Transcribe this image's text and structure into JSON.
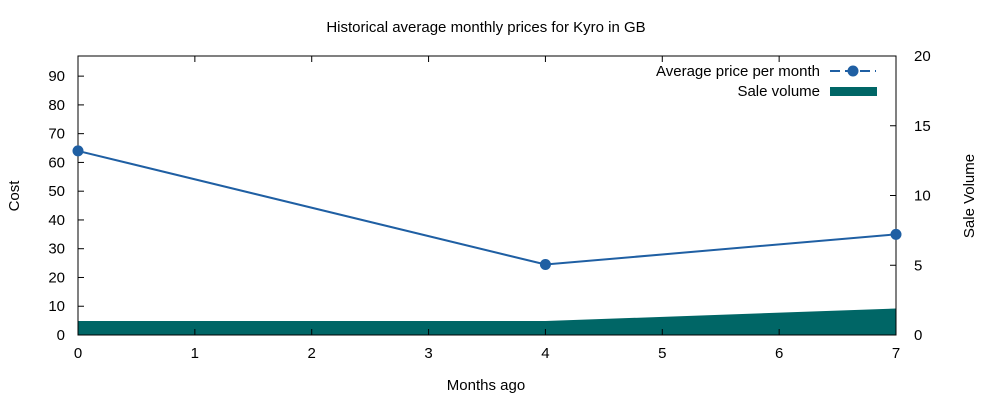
{
  "chart_data": {
    "type": "line",
    "title": "Historical average monthly prices for Kyro in GB",
    "xlabel": "Months ago",
    "ylabel": "Cost",
    "y2label": "Sale Volume",
    "xlim": [
      0,
      7
    ],
    "ylim": [
      0,
      97
    ],
    "y2lim": [
      0,
      20
    ],
    "x_ticks": [
      "0",
      "1",
      "2",
      "3",
      "4",
      "5",
      "6",
      "7"
    ],
    "y_ticks": [
      "0",
      "10",
      "20",
      "30",
      "40",
      "50",
      "60",
      "70",
      "80",
      "90"
    ],
    "y2_ticks": [
      "0",
      "5",
      "10",
      "15",
      "20"
    ],
    "grid": false,
    "legend_position": "top-right",
    "series": [
      {
        "name": "Average price per month",
        "type": "line",
        "axis": "left",
        "color": "#1f5fa3",
        "x": [
          0,
          4,
          7
        ],
        "values": [
          64,
          24.5,
          35
        ]
      },
      {
        "name": "Sale volume",
        "type": "area",
        "axis": "right",
        "color": "#006666",
        "x": [
          0,
          4,
          7
        ],
        "values": [
          1,
          1,
          1.9
        ]
      }
    ]
  }
}
